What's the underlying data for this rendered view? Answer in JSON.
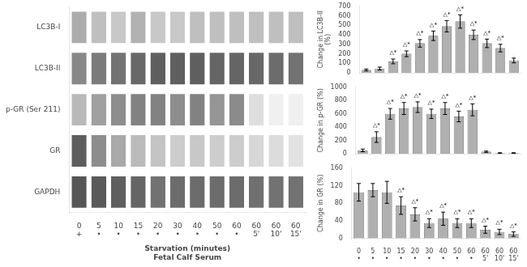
{
  "chart_data": [
    {
      "type": "heatmap",
      "rows": [
        "LC3B-I",
        "LC3B-II",
        "p-GR (Ser 211)",
        "GR",
        "GAPDH"
      ],
      "categories": [
        "0",
        "5",
        "10",
        "15",
        "20",
        "30",
        "40",
        "50",
        "60",
        "60",
        "60",
        "60"
      ],
      "categories2": [
        "+",
        "•",
        "•",
        "•",
        "•",
        "•",
        "•",
        "•",
        "•",
        "5'",
        "10'",
        "15'"
      ],
      "xlabel": "Starvation (minutes)",
      "xlabel2": "Fetal Calf Serum",
      "cells": [
        [
          0.45,
          0.35,
          0.3,
          0.42,
          0.3,
          0.3,
          0.35,
          0.35,
          0.35,
          0.35,
          0.35,
          0.35
        ],
        [
          0.65,
          0.72,
          0.77,
          0.82,
          0.87,
          0.87,
          0.87,
          0.84,
          0.84,
          0.82,
          0.8,
          0.77
        ],
        [
          0.38,
          0.52,
          0.62,
          0.68,
          0.68,
          0.62,
          0.68,
          0.58,
          0.63,
          0.18,
          0.08,
          0.08
        ],
        [
          0.88,
          0.62,
          0.47,
          0.37,
          0.32,
          0.27,
          0.3,
          0.27,
          0.27,
          0.22,
          0.19,
          0.16
        ],
        [
          0.92,
          0.9,
          0.87,
          0.84,
          0.77,
          0.8,
          0.8,
          0.8,
          0.8,
          0.78,
          0.77,
          0.77
        ]
      ],
      "grid": false
    },
    {
      "type": "bar",
      "values": [
        30,
        45,
        120,
        200,
        310,
        390,
        490,
        540,
        400,
        310,
        260,
        130
      ],
      "errors": [
        10,
        15,
        25,
        30,
        40,
        50,
        60,
        70,
        50,
        45,
        40,
        25
      ],
      "color": "#b0b0b0",
      "ylabel": "Change in LC3B-II\n(%)",
      "ylim": [
        0,
        700
      ],
      "yticks": [
        0,
        100,
        200,
        300,
        400,
        500,
        600,
        700
      ],
      "tick_labels": "y",
      "grid": false,
      "annotations": [
        {
          "x": 2,
          "text": "△*"
        },
        {
          "x": 3,
          "text": "△*"
        },
        {
          "x": 4,
          "text": "△*"
        },
        {
          "x": 5,
          "text": "△*"
        },
        {
          "x": 6,
          "text": "△*"
        },
        {
          "x": 7,
          "text": "△*"
        },
        {
          "x": 8,
          "text": "△*"
        },
        {
          "x": 9,
          "text": "△*"
        },
        {
          "x": 10,
          "text": "△*"
        }
      ]
    },
    {
      "type": "bar",
      "values": [
        50,
        250,
        600,
        680,
        700,
        600,
        680,
        560,
        660,
        30,
        10,
        10
      ],
      "errors": [
        20,
        80,
        80,
        90,
        80,
        70,
        90,
        80,
        90,
        10,
        5,
        5
      ],
      "color": "#b0b0b0",
      "ylabel": "Change in p-GR (%)",
      "ylim": [
        0,
        1000
      ],
      "yticks": [
        0,
        200,
        400,
        600,
        800,
        1000
      ],
      "tick_labels": "y",
      "grid": false,
      "annotations": [
        {
          "x": 1,
          "text": "△*"
        },
        {
          "x": 2,
          "text": "△*"
        },
        {
          "x": 3,
          "text": "△*"
        },
        {
          "x": 4,
          "text": "△*"
        },
        {
          "x": 5,
          "text": "△*"
        },
        {
          "x": 6,
          "text": "△*"
        },
        {
          "x": 7,
          "text": "△*"
        },
        {
          "x": 8,
          "text": "△*"
        }
      ]
    },
    {
      "type": "bar",
      "categories": [
        "0",
        "5",
        "10",
        "15",
        "20",
        "30",
        "40",
        "50",
        "60",
        "60",
        "60",
        "60"
      ],
      "categories2": [
        "•",
        "•",
        "•",
        "•",
        "•",
        "•",
        "•",
        "•",
        "•",
        "5'",
        "10'",
        "15'"
      ],
      "values": [
        105,
        110,
        105,
        75,
        55,
        35,
        45,
        35,
        35,
        20,
        15,
        10
      ],
      "errors": [
        20,
        15,
        25,
        20,
        15,
        10,
        15,
        10,
        10,
        8,
        6,
        5
      ],
      "color": "#b0b0b0",
      "ylabel": "Change in GR (%)",
      "ylim": [
        0,
        160
      ],
      "yticks": [
        0,
        40,
        80,
        120,
        160
      ],
      "grid": false,
      "annotations": [
        {
          "x": 3,
          "text": "△*"
        },
        {
          "x": 4,
          "text": "△*"
        },
        {
          "x": 5,
          "text": "△*"
        },
        {
          "x": 6,
          "text": "△*"
        },
        {
          "x": 7,
          "text": "△*"
        },
        {
          "x": 8,
          "text": "△*"
        },
        {
          "x": 9,
          "text": "△*"
        },
        {
          "x": 10,
          "text": "△*"
        },
        {
          "x": 11,
          "text": "△*"
        }
      ]
    }
  ]
}
